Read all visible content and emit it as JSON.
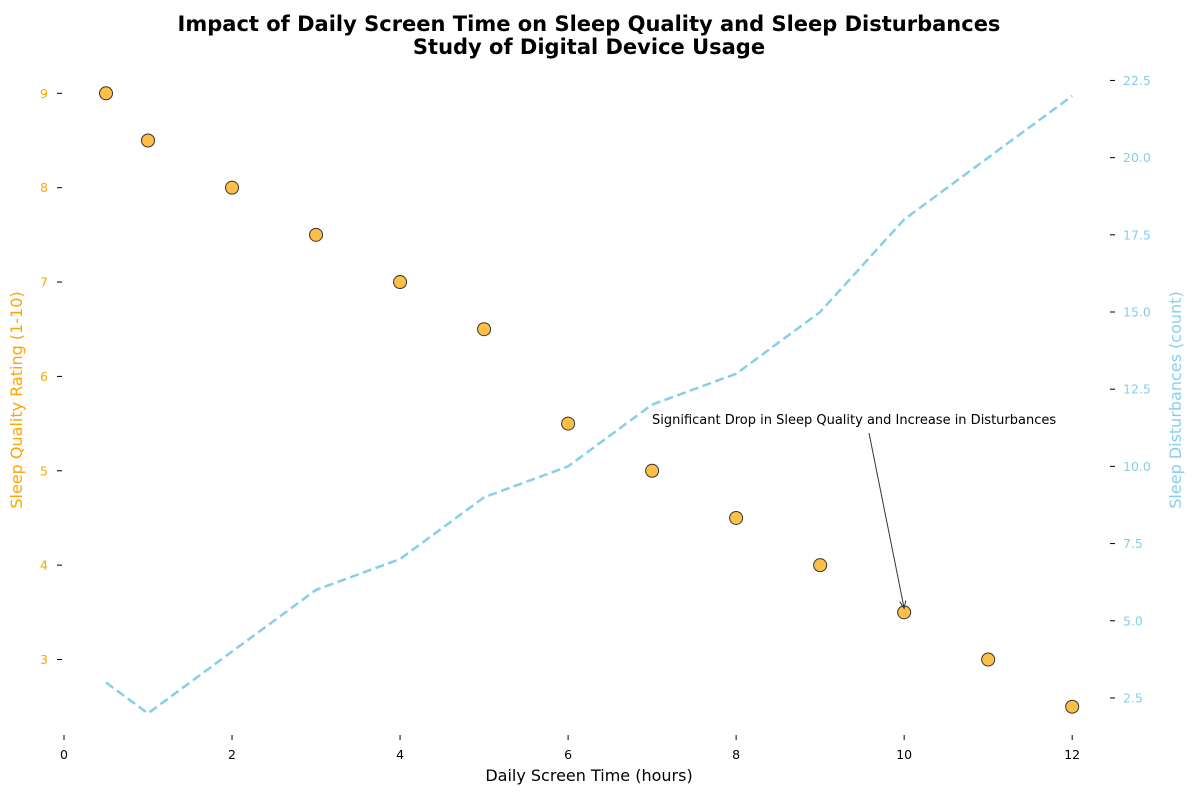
{
  "chart_data": {
    "type": "scatter",
    "title_line1": "Impact of Daily Screen Time on Sleep Quality and Sleep Disturbances",
    "title_line2": "Study of Digital Device Usage",
    "xlabel": "Daily Screen Time (hours)",
    "ylabel_left": "Sleep Quality Rating (1-10)",
    "ylabel_right": "Sleep Disturbances (count)",
    "xlim": [
      0,
      12.45
    ],
    "ylim_left": [
      2.2,
      9.3
    ],
    "ylim_right": [
      1.3,
      23.0
    ],
    "x_ticks": [
      0,
      2,
      4,
      6,
      8,
      10,
      12
    ],
    "y_left_ticks": [
      3,
      4,
      5,
      6,
      7,
      8,
      9
    ],
    "y_right_ticks": [
      "2.5",
      "5.0",
      "7.5",
      "10.0",
      "12.5",
      "15.0",
      "17.5",
      "20.0",
      "22.5"
    ],
    "series": [
      {
        "name": "Sleep Quality",
        "type": "scatter",
        "axis": "left",
        "color": "#FFB732",
        "x": [
          0.5,
          1,
          2,
          3,
          4,
          5,
          6,
          7,
          8,
          9,
          10,
          11,
          12
        ],
        "values": [
          9,
          8.5,
          8,
          7.5,
          7,
          6.5,
          5.5,
          5,
          4.5,
          4,
          3.5,
          3,
          2.5
        ]
      },
      {
        "name": "Sleep Disturbances",
        "type": "line",
        "style": "dashed",
        "axis": "right",
        "color": "#87CEEB",
        "x": [
          0.5,
          1,
          2,
          3,
          4,
          5,
          6,
          7,
          8,
          9,
          10,
          11,
          12
        ],
        "values": [
          3,
          2,
          4,
          6,
          7,
          9,
          10,
          12,
          13,
          15,
          18,
          20,
          22
        ]
      }
    ],
    "annotation": {
      "text": "Significant Drop in Sleep Quality and Increase in Disturbances",
      "point_x": 10,
      "point_y": 3.5
    },
    "colors": {
      "left_axis": "#FFA500",
      "right_axis": "#87CEEB",
      "text": "#000000"
    },
    "grid": false
  }
}
